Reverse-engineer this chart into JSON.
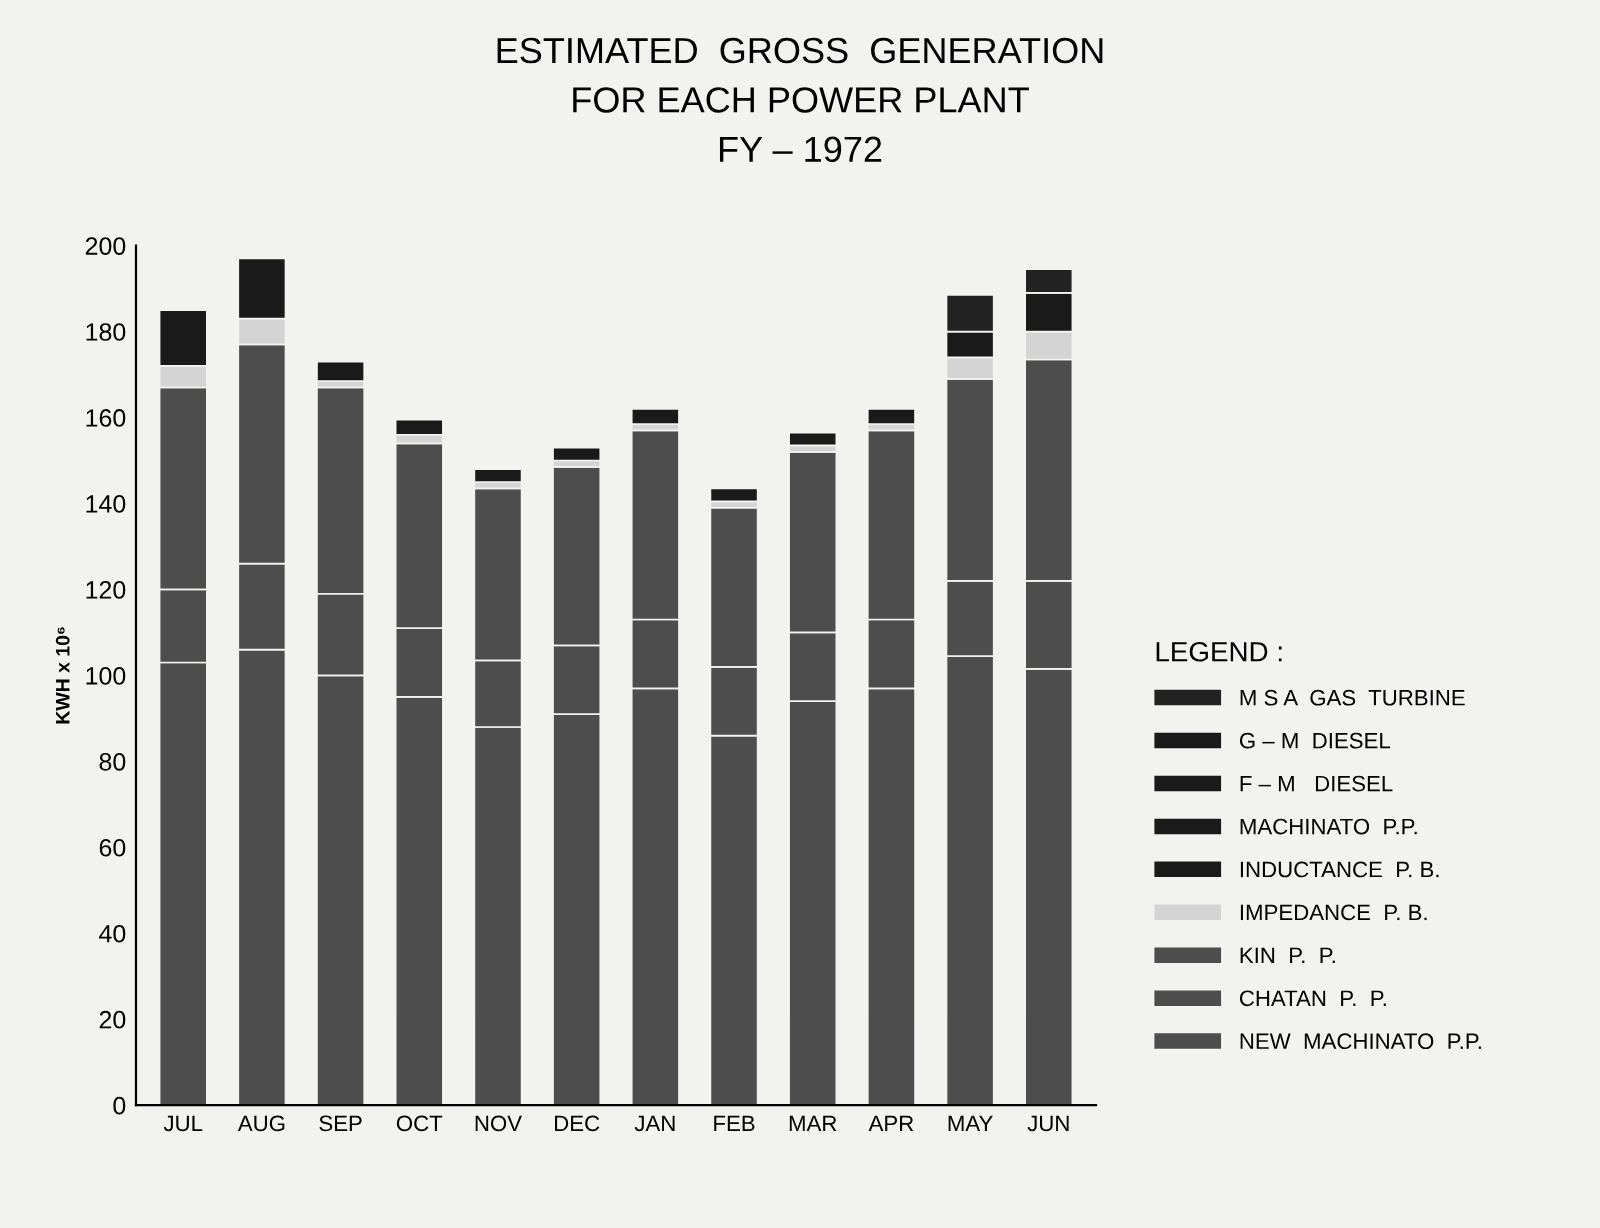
{
  "chart_data": {
    "type": "bar",
    "title": "ESTIMATED  GROSS  GENERATION\nFOR EACH POWER PLANT\nFY – 1972",
    "ylabel": "KWH x 10⁶",
    "categories": [
      "JUL",
      "AUG",
      "SEP",
      "OCT",
      "NOV",
      "DEC",
      "JAN",
      "FEB",
      "MAR",
      "APR",
      "MAY",
      "JUN"
    ],
    "stacked": true,
    "ylim": [
      0,
      200
    ],
    "yticks": [
      0,
      20,
      40,
      60,
      80,
      100,
      120,
      140,
      160,
      180,
      200
    ],
    "grid": false,
    "legend": "right",
    "legend_title": "LEGEND :",
    "series": [
      {
        "name": "NEW  MACHINATO  P.P.",
        "color": "#4d4d4d",
        "values": [
          103,
          106,
          100,
          95,
          88,
          91,
          97,
          86,
          94,
          97,
          104.5,
          101.5
        ]
      },
      {
        "name": "CHATAN  P.  P.",
        "color": "#4d4d4d",
        "values": [
          17,
          20,
          19,
          16,
          15.5,
          16,
          16,
          16,
          16,
          16,
          17.5,
          20.5
        ]
      },
      {
        "name": "KIN  P.  P.",
        "color": "#4d4d4d",
        "values": [
          47,
          51,
          48,
          43,
          40,
          41.5,
          44,
          37,
          42,
          44,
          47,
          51.5
        ]
      },
      {
        "name": "IMPEDANCE  P. B.",
        "color": "#d4d4d4",
        "values": [
          5,
          6,
          1.5,
          2,
          1.5,
          1.5,
          1.5,
          1.5,
          1.5,
          1.5,
          5,
          6.5
        ]
      },
      {
        "name": "INDUCTANCE  P. B.",
        "color": "#1a1a1a",
        "values": [
          13,
          14,
          4.5,
          3.5,
          3,
          3,
          3.5,
          3,
          3,
          3.5,
          6,
          9
        ]
      },
      {
        "name": "MACHINATO  P.P.",
        "color": "#1a1a1a",
        "values": [
          null,
          null,
          null,
          null,
          null,
          null,
          null,
          null,
          null,
          null,
          null,
          null
        ]
      },
      {
        "name": "F – M   DIESEL",
        "color": "#1a1a1a",
        "values": [
          null,
          null,
          null,
          null,
          null,
          null,
          null,
          null,
          null,
          null,
          null,
          null
        ]
      },
      {
        "name": "G – M  DIESEL",
        "color": "#1a1a1a",
        "values": [
          null,
          null,
          null,
          null,
          null,
          null,
          null,
          null,
          null,
          null,
          null,
          null
        ]
      },
      {
        "name": "M S A  GAS  TURBINE",
        "color": "#222222",
        "values": [
          null,
          null,
          null,
          null,
          null,
          null,
          null,
          null,
          null,
          null,
          8.5,
          5.5
        ]
      }
    ]
  }
}
